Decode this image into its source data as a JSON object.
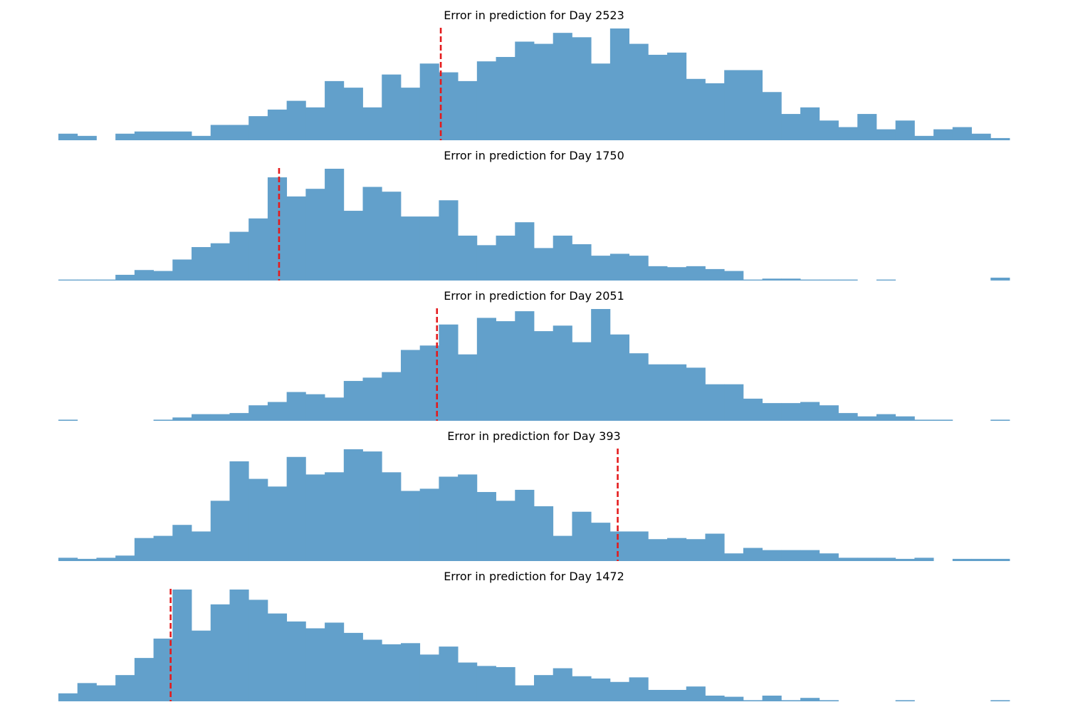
{
  "chart_data": [
    {
      "type": "bar",
      "title": "Error in prediction for Day 2523",
      "bar_color": "#62a0cb",
      "marker_color": "#e41a1c",
      "marker_bin": 20.1,
      "values": [
        3,
        2,
        0,
        3,
        4,
        4,
        4,
        2,
        7,
        7,
        11,
        14,
        18,
        15,
        27,
        24,
        15,
        30,
        24,
        35,
        31,
        27,
        36,
        38,
        45,
        44,
        49,
        47,
        35,
        51,
        44,
        39,
        40,
        28,
        26,
        32,
        32,
        22,
        12,
        15,
        9,
        6,
        12,
        5,
        9,
        2,
        5,
        6,
        3,
        1
      ]
    },
    {
      "type": "bar",
      "title": "Error in prediction for Day 1750",
      "bar_color": "#62a0cb",
      "marker_color": "#e41a1c",
      "marker_bin": 11.6,
      "values": [
        1,
        1,
        1,
        6,
        11,
        10,
        22,
        35,
        39,
        51,
        65,
        108,
        88,
        96,
        117,
        73,
        98,
        93,
        67,
        67,
        84,
        47,
        37,
        47,
        61,
        34,
        47,
        38,
        26,
        28,
        26,
        15,
        14,
        15,
        12,
        10,
        1,
        2,
        2,
        1,
        1,
        1,
        0,
        1,
        0,
        0,
        0,
        0,
        0,
        3
      ]
    },
    {
      "type": "bar",
      "title": "Error in prediction for Day 2051",
      "bar_color": "#62a0cb",
      "marker_color": "#e41a1c",
      "marker_bin": 19.9,
      "values": [
        1,
        0,
        0,
        0,
        0,
        1,
        3,
        6,
        6,
        7,
        14,
        17,
        26,
        24,
        21,
        36,
        39,
        44,
        64,
        68,
        87,
        60,
        93,
        90,
        99,
        81,
        86,
        71,
        101,
        78,
        61,
        51,
        51,
        48,
        33,
        33,
        20,
        16,
        16,
        17,
        14,
        7,
        4,
        6,
        4,
        1,
        1,
        0,
        0,
        1
      ]
    },
    {
      "type": "bar",
      "title": "Error in prediction for Day 393",
      "bar_color": "#62a0cb",
      "marker_color": "#e41a1c",
      "marker_bin": 29.4,
      "values": [
        3,
        2,
        3,
        5,
        21,
        23,
        33,
        27,
        55,
        91,
        75,
        68,
        95,
        79,
        81,
        102,
        100,
        81,
        64,
        66,
        77,
        79,
        63,
        55,
        65,
        50,
        23,
        45,
        35,
        27,
        27,
        20,
        21,
        20,
        25,
        7,
        12,
        10,
        10,
        10,
        7,
        3,
        3,
        3,
        2,
        3,
        0,
        2,
        2,
        2
      ]
    },
    {
      "type": "bar",
      "title": "Error in prediction for Day 1472",
      "bar_color": "#62a0cb",
      "marker_color": "#e41a1c",
      "marker_bin": 5.9,
      "values": [
        7,
        16,
        14,
        23,
        38,
        55,
        98,
        62,
        85,
        98,
        89,
        77,
        70,
        64,
        69,
        60,
        54,
        50,
        51,
        41,
        48,
        34,
        31,
        30,
        14,
        23,
        29,
        22,
        20,
        17,
        21,
        10,
        10,
        13,
        5,
        4,
        1,
        5,
        1,
        3,
        1,
        0,
        0,
        0,
        1,
        0,
        0,
        0,
        0,
        1
      ]
    }
  ]
}
